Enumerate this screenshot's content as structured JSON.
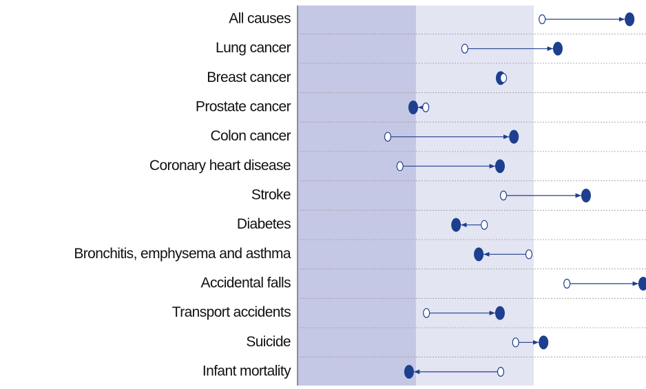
{
  "chart_data": {
    "type": "dot-arrow",
    "categories": [
      "All causes",
      "Lung cancer",
      "Breast cancer",
      "Prostate cancer",
      "Colon cancer",
      "Coronary heart disease",
      "Stroke",
      "Diabetes",
      "Bronchitis, emphysema and asthma",
      "Accidental falls",
      "Transport accidents",
      "Suicide",
      "Infant mortality"
    ],
    "series": [
      {
        "color": "#1d3f8e",
        "values": [
          70.2,
          48.0,
          59.1,
          36.8,
          25.9,
          29.4,
          59.1,
          53.6,
          66.4,
          77.3,
          37.0,
          62.6,
          58.3
        ]
      },
      {
        "color": "#1d3f8e",
        "values": [
          95.3,
          74.7,
          58.3,
          33.2,
          62.1,
          58.1,
          82.8,
          45.5,
          52.0,
          99.2,
          58.1,
          70.6,
          32.0
        ]
      }
    ],
    "xlim": [
      0,
      100
    ],
    "bands": [
      {
        "from": 0,
        "to": 34,
        "color": "#c4c8e4"
      },
      {
        "from": 34,
        "to": 67.8,
        "color": "#e3e5f3"
      }
    ]
  }
}
